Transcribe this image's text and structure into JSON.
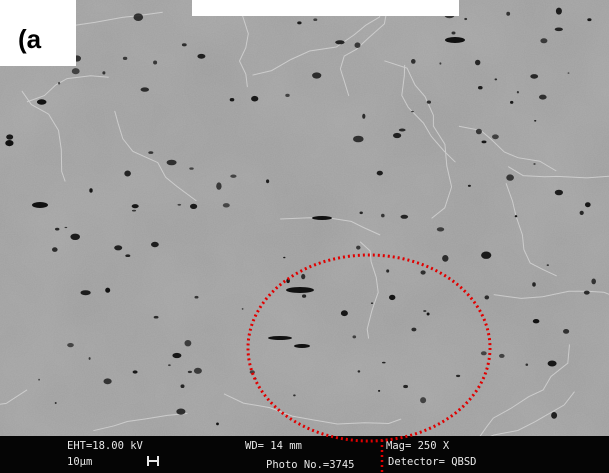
{
  "panel": {
    "label": "(a"
  },
  "info_bar": {
    "eht": "EHT=18.00 kV",
    "scale": "10µm",
    "wd": "WD=  14 mm",
    "photo": "Photo No.=3745",
    "mag": "Mag=  250  X",
    "detector": "Detector= QBSD"
  },
  "colors": {
    "background": "#9a9a9a",
    "highlight": "#e00000",
    "info_bar": "#050505"
  },
  "icons": {
    "scale_bar": "scale-bar-icon"
  }
}
